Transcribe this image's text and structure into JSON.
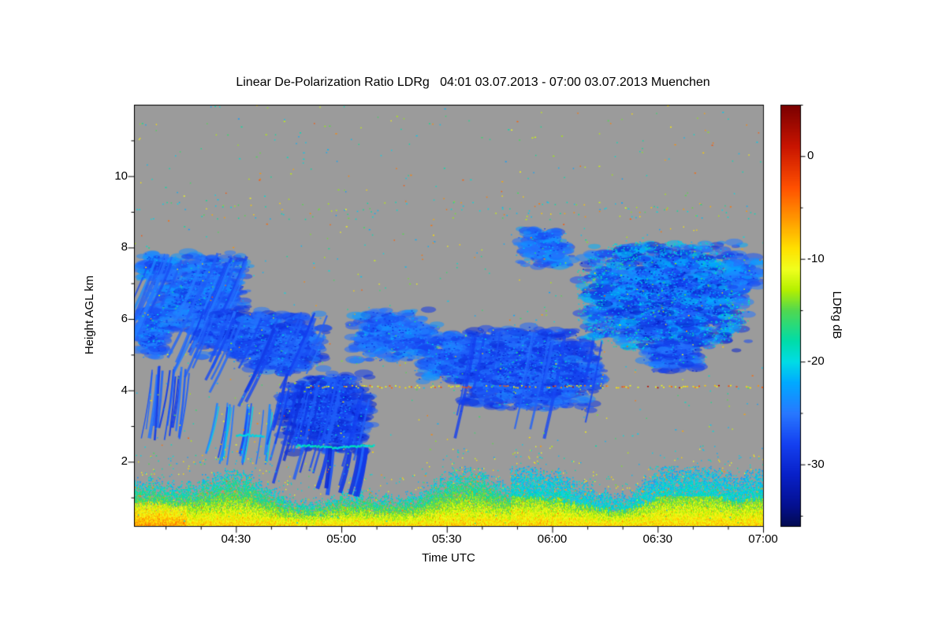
{
  "chart_data": {
    "type": "heatmap",
    "title": "Linear De-Polarization Ratio LDRg   04:01 03.07.2013 - 07:00 03.07.2013 Muenchen",
    "xlabel": "Time UTC",
    "ylabel": "Height AGL km",
    "x_unit": "minutes_since_midnight",
    "x_range_minutes": [
      241,
      420
    ],
    "x_tick_minutes": [
      270,
      300,
      330,
      360,
      390,
      420
    ],
    "x_tick_labels": [
      "04:30",
      "05:00",
      "05:30",
      "06:00",
      "06:30",
      "07:00"
    ],
    "x_minor_tick_step_minutes": 10,
    "y_range_km": [
      0.2,
      12
    ],
    "y_tick_values": [
      2,
      4,
      6,
      8,
      10
    ],
    "y_tick_labels": [
      "2",
      "4",
      "6",
      "8",
      "10"
    ],
    "y_minor_tick_values": [
      1,
      3,
      5,
      7,
      9,
      11
    ],
    "background_color": "#9b9b9b",
    "grid": false,
    "colorbar": {
      "label": "LDRg dB",
      "range": [
        5,
        -36
      ],
      "tick_values": [
        0,
        -10,
        -20,
        -30
      ],
      "tick_labels": [
        "0",
        "-10",
        "-20",
        "-30"
      ],
      "minor_tick_values": [
        5,
        -5,
        -15,
        -25,
        -35
      ],
      "stops": [
        [
          5,
          "#7a0000"
        ],
        [
          1,
          "#c81400"
        ],
        [
          -3,
          "#ff5000"
        ],
        [
          -6,
          "#ff9600"
        ],
        [
          -9,
          "#ffe100"
        ],
        [
          -11,
          "#f0ff1e"
        ],
        [
          -13,
          "#b4f000"
        ],
        [
          -15,
          "#50d850"
        ],
        [
          -18,
          "#00dcaa"
        ],
        [
          -20,
          "#00dce6"
        ],
        [
          -22,
          "#00aaff"
        ],
        [
          -25,
          "#2878ff"
        ],
        [
          -28,
          "#1440f0"
        ],
        [
          -31,
          "#0820c8"
        ],
        [
          -34,
          "#041090"
        ],
        [
          -36,
          "#020a50"
        ]
      ]
    },
    "features": [
      {
        "type": "cloud",
        "t": [
          241,
          251
        ],
        "h": [
          4.9,
          6.4
        ],
        "v": -26,
        "density": 1.0
      },
      {
        "type": "cloud",
        "t": [
          241,
          253
        ],
        "h": [
          7.0,
          7.9
        ],
        "v": -25,
        "density": 0.55
      },
      {
        "type": "cloud",
        "t": [
          245,
          274
        ],
        "h": [
          5.5,
          7.9
        ],
        "v": -26,
        "density": 0.85,
        "streaks": 24,
        "slant": -0.45
      },
      {
        "type": "cloud",
        "t": [
          258,
          281
        ],
        "h": [
          4.9,
          6.3
        ],
        "v": -27,
        "density": 0.85,
        "streaks": 14,
        "slant": -0.4
      },
      {
        "type": "cloud",
        "t": [
          268,
          296
        ],
        "h": [
          4.4,
          6.2
        ],
        "v": -27,
        "density": 0.9,
        "streaks": 16,
        "slant": -0.45
      },
      {
        "type": "streak_group",
        "t": [
          246,
          257
        ],
        "h": [
          2.6,
          4.7
        ],
        "count": 16,
        "v": -27
      },
      {
        "type": "streak_group",
        "t": [
          263,
          280
        ],
        "h": [
          1.9,
          3.7
        ],
        "count": 12,
        "v": -26,
        "cyan": true
      },
      {
        "type": "cloud",
        "t": [
          282,
          309
        ],
        "h": [
          2.2,
          4.5
        ],
        "v": -28,
        "density": 1.15,
        "streaks": 20,
        "slant": -0.25
      },
      {
        "type": "boundary_layer",
        "t": [
          241,
          420
        ],
        "top_km_base": 1.15,
        "top_km_max": 1.9,
        "right_enhanced_after_minute": 348
      },
      {
        "type": "streak_group",
        "t": [
          295,
          309
        ],
        "h": [
          1.0,
          2.5
        ],
        "count": 9,
        "v": -28,
        "width": 5
      },
      {
        "type": "bright_band",
        "t": [
          287,
          309
        ],
        "h": 2.45,
        "v": -19
      },
      {
        "type": "bright_band",
        "t": [
          270,
          278
        ],
        "h": 2.75,
        "v": -20
      },
      {
        "type": "cloud",
        "t": [
          302,
          328
        ],
        "h": [
          4.8,
          6.3
        ],
        "v": -26,
        "density": 0.75
      },
      {
        "type": "cloud",
        "t": [
          320,
          347
        ],
        "h": [
          4.2,
          5.7
        ],
        "v": -26,
        "density": 0.8
      },
      {
        "type": "cloud",
        "t": [
          331,
          375
        ],
        "h": [
          3.4,
          5.8
        ],
        "v": -27,
        "density": 1.0,
        "streaks": 12,
        "slant": -0.2
      },
      {
        "type": "cloud",
        "t": [
          349,
          366
        ],
        "h": [
          7.4,
          8.6
        ],
        "v": -25,
        "density": 0.6
      },
      {
        "type": "cloud",
        "t": [
          367,
          416
        ],
        "h": [
          5.1,
          8.2
        ],
        "v": -26,
        "density": 1.0,
        "cyanEdge": true,
        "jitter": 5
      },
      {
        "type": "cloud",
        "t": [
          385,
          403
        ],
        "h": [
          4.5,
          5.5
        ],
        "v": -27,
        "density": 0.65
      },
      {
        "type": "cloud",
        "t": [
          409,
          420
        ],
        "h": [
          6.7,
          7.8
        ],
        "v": -25,
        "density": 0.5
      },
      {
        "type": "artifact_line",
        "t": [
          290,
          420
        ],
        "h": 4.12
      },
      {
        "type": "speckle_band",
        "t": [
          241,
          420
        ],
        "h": [
          8.8,
          9.3
        ],
        "density": 0.15
      },
      {
        "type": "speckle_band",
        "t": [
          241,
          302
        ],
        "h": [
          1.8,
          2.6
        ],
        "density": 0.15
      },
      {
        "type": "speckle",
        "count": 800
      }
    ]
  }
}
